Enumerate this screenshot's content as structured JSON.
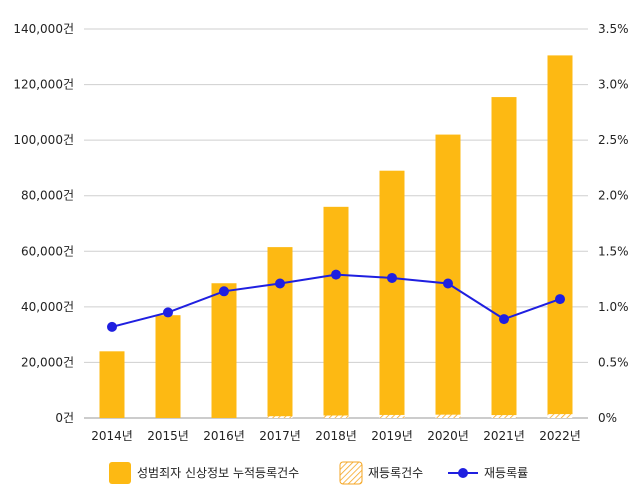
{
  "chart_data": {
    "type": "bar",
    "categories": [
      "2014년",
      "2015년",
      "2016년",
      "2017년",
      "2018년",
      "2019년",
      "2020년",
      "2021년",
      "2022년"
    ],
    "y_left": {
      "ylim": [
        0,
        140000
      ],
      "ticks": [
        0,
        20000,
        40000,
        60000,
        80000,
        100000,
        120000,
        140000
      ],
      "tick_labels": [
        "0건",
        "20,000건",
        "40,000건",
        "60,000건",
        "80,000건",
        "100,000건",
        "120,000건",
        "140,000건"
      ]
    },
    "y_right": {
      "ylim": [
        0,
        3.5
      ],
      "ticks": [
        0,
        0.5,
        1.0,
        1.5,
        2.0,
        2.5,
        3.0,
        3.5
      ],
      "tick_labels": [
        "0%",
        "0.5%",
        "1.0%",
        "1.5%",
        "2.0%",
        "2.5%",
        "3.0%",
        "3.5%"
      ]
    },
    "series": [
      {
        "name": "성범죄자 신상정보 누적등록건수",
        "kind": "bar",
        "axis": "left",
        "color": "#FDB913",
        "values": [
          24000,
          37000,
          48500,
          61500,
          76000,
          89000,
          102000,
          115500,
          130500
        ]
      },
      {
        "name": "재등록건수",
        "kind": "bar-stacked-hatched",
        "axis": "left",
        "color": "#F5A623",
        "values": [
          0,
          0,
          0,
          650,
          900,
          1100,
          1200,
          1050,
          1400
        ]
      },
      {
        "name": "재등록률",
        "kind": "line",
        "axis": "right",
        "color": "#1F1FE0",
        "values": [
          0.82,
          0.95,
          1.14,
          1.21,
          1.29,
          1.26,
          1.21,
          0.89,
          1.07
        ]
      }
    ],
    "grid": true,
    "legend_position": "bottom"
  }
}
